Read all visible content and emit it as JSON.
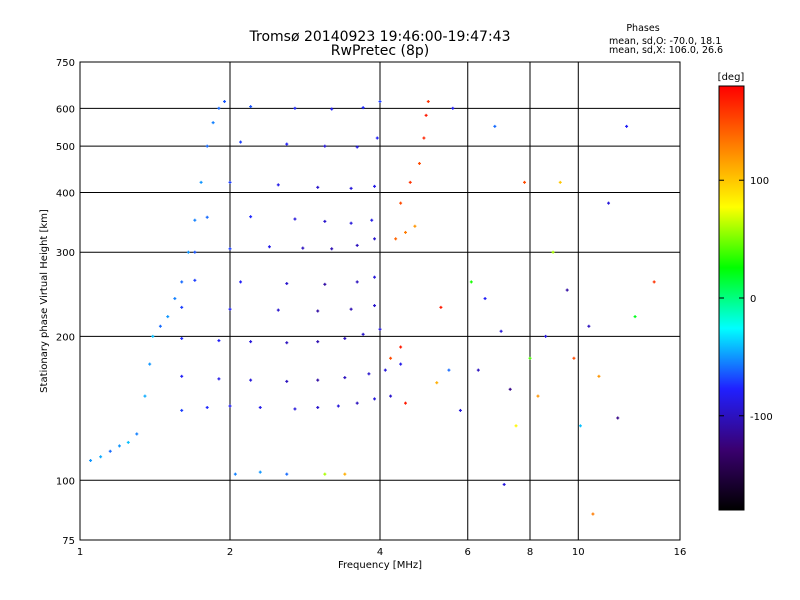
{
  "chart_data": {
    "type": "scatter",
    "title": "Tromsø 20140923 19:46:00-19:47:43",
    "subtitle": "RwPretec (8p)",
    "phases": {
      "heading": "Phases",
      "line_o": "mean, sd,O: -70.0, 18.1",
      "line_x": "mean, sd,X: 106.0, 26.6"
    },
    "xlabel": "Frequency [MHz]",
    "ylabel": "Stationary phase Virtual Height [km]",
    "x_scale": "log",
    "y_scale": "log",
    "xlim": [
      1,
      16
    ],
    "ylim": [
      75,
      750
    ],
    "x_ticks": [
      {
        "value": 1,
        "label": "1"
      },
      {
        "value": 2,
        "label": "2"
      },
      {
        "value": 4,
        "label": "4"
      },
      {
        "value": 6,
        "label": "6"
      },
      {
        "value": 8,
        "label": "8"
      },
      {
        "value": 10,
        "label": "10"
      },
      {
        "value": 16,
        "label": "16"
      }
    ],
    "y_ticks": [
      {
        "value": 75,
        "label": "75"
      },
      {
        "value": 100,
        "label": "100"
      },
      {
        "value": 200,
        "label": "200"
      },
      {
        "value": 300,
        "label": "300"
      },
      {
        "value": 400,
        "label": "400"
      },
      {
        "value": 500,
        "label": "500"
      },
      {
        "value": 600,
        "label": "600"
      },
      {
        "value": 750,
        "label": "750"
      }
    ],
    "x_gridlines": [
      2,
      4,
      6,
      8,
      10
    ],
    "y_gridlines": [
      100,
      200,
      300,
      400,
      500,
      600
    ],
    "grid": true,
    "colorbar": {
      "label": "[deg]",
      "range": [
        -180,
        180
      ],
      "ticks": [
        {
          "value": 100,
          "label": "100"
        },
        {
          "value": 0,
          "label": "0"
        },
        {
          "value": -100,
          "label": "-100"
        }
      ],
      "colors": [
        "#000000",
        "#3a0070",
        "#2020ff",
        "#00ffff",
        "#00ff00",
        "#ffff00",
        "#ff8000",
        "#ff0000"
      ]
    },
    "series": [
      {
        "values": [
          [
            1.05,
            110,
            -50
          ],
          [
            1.1,
            112,
            -45
          ],
          [
            1.15,
            115,
            -60
          ],
          [
            1.2,
            118,
            -50
          ],
          [
            1.25,
            120,
            -40
          ],
          [
            1.3,
            125,
            -55
          ],
          [
            1.35,
            150,
            -45
          ],
          [
            1.38,
            175,
            -50
          ],
          [
            1.4,
            200,
            -40
          ],
          [
            1.45,
            210,
            -60
          ],
          [
            1.5,
            220,
            -50
          ],
          [
            1.55,
            240,
            -55
          ],
          [
            1.6,
            260,
            -60
          ],
          [
            1.65,
            300,
            -50
          ],
          [
            1.7,
            350,
            -55
          ],
          [
            1.75,
            420,
            -50
          ],
          [
            1.8,
            500,
            -60
          ],
          [
            1.85,
            560,
            -55
          ],
          [
            1.9,
            600,
            -60
          ],
          [
            1.95,
            620,
            -65
          ],
          [
            1.6,
            140,
            -70
          ],
          [
            1.8,
            142,
            -75
          ],
          [
            2.0,
            143,
            -80
          ],
          [
            2.3,
            142,
            -85
          ],
          [
            2.7,
            141,
            -90
          ],
          [
            3.0,
            142,
            -95
          ],
          [
            3.3,
            143,
            -90
          ],
          [
            3.6,
            145,
            -100
          ],
          [
            3.9,
            148,
            -90
          ],
          [
            4.2,
            150,
            -95
          ],
          [
            1.6,
            165,
            -80
          ],
          [
            1.9,
            163,
            -85
          ],
          [
            2.2,
            162,
            -90
          ],
          [
            2.6,
            161,
            -100
          ],
          [
            3.0,
            162,
            -110
          ],
          [
            3.4,
            164,
            -100
          ],
          [
            3.8,
            167,
            -95
          ],
          [
            4.1,
            170,
            -90
          ],
          [
            4.4,
            175,
            -85
          ],
          [
            1.6,
            198,
            -75
          ],
          [
            1.9,
            196,
            -80
          ],
          [
            2.2,
            195,
            -90
          ],
          [
            2.6,
            194,
            -100
          ],
          [
            3.0,
            195,
            -105
          ],
          [
            3.4,
            198,
            -100
          ],
          [
            3.7,
            202,
            -95
          ],
          [
            4.0,
            207,
            -90
          ],
          [
            1.6,
            230,
            -70
          ],
          [
            2.0,
            228,
            -80
          ],
          [
            2.5,
            227,
            -95
          ],
          [
            3.0,
            226,
            -110
          ],
          [
            3.5,
            228,
            -105
          ],
          [
            3.9,
            232,
            -95
          ],
          [
            1.7,
            262,
            -70
          ],
          [
            2.1,
            260,
            -80
          ],
          [
            2.6,
            258,
            -95
          ],
          [
            3.1,
            257,
            -110
          ],
          [
            3.6,
            260,
            -100
          ],
          [
            3.9,
            266,
            -90
          ],
          [
            1.7,
            300,
            -65
          ],
          [
            2.0,
            305,
            -70
          ],
          [
            2.4,
            308,
            -85
          ],
          [
            2.8,
            306,
            -100
          ],
          [
            3.2,
            305,
            -105
          ],
          [
            3.6,
            310,
            -100
          ],
          [
            3.9,
            320,
            -95
          ],
          [
            1.8,
            355,
            -60
          ],
          [
            2.2,
            356,
            -75
          ],
          [
            2.7,
            352,
            -90
          ],
          [
            3.1,
            348,
            -95
          ],
          [
            3.5,
            345,
            -90
          ],
          [
            3.85,
            350,
            -85
          ],
          [
            2.0,
            420,
            -70
          ],
          [
            2.5,
            415,
            -85
          ],
          [
            3.0,
            410,
            -95
          ],
          [
            3.5,
            408,
            -90
          ],
          [
            3.9,
            412,
            -85
          ],
          [
            2.1,
            510,
            -70
          ],
          [
            2.6,
            505,
            -80
          ],
          [
            3.1,
            500,
            -90
          ],
          [
            3.6,
            498,
            -85
          ],
          [
            3.95,
            520,
            -80
          ],
          [
            2.2,
            605,
            -65
          ],
          [
            2.7,
            600,
            -75
          ],
          [
            3.2,
            598,
            -80
          ],
          [
            3.7,
            602,
            -75
          ],
          [
            4.0,
            620,
            -70
          ],
          [
            2.05,
            103,
            -55
          ],
          [
            2.3,
            104,
            -50
          ],
          [
            2.6,
            103,
            -60
          ],
          [
            3.1,
            103,
            60
          ],
          [
            3.4,
            103,
            110
          ],
          [
            4.3,
            320,
            140
          ],
          [
            4.5,
            330,
            130
          ],
          [
            4.7,
            340,
            120
          ],
          [
            4.4,
            380,
            150
          ],
          [
            4.6,
            420,
            160
          ],
          [
            4.8,
            460,
            150
          ],
          [
            4.9,
            520,
            165
          ],
          [
            4.95,
            580,
            170
          ],
          [
            5.0,
            620,
            160
          ],
          [
            4.2,
            180,
            150
          ],
          [
            4.4,
            190,
            170
          ],
          [
            4.5,
            145,
            170
          ]
        ]
      }
    ],
    "scatter_points": [
      [
        6.3,
        170,
        -100
      ],
      [
        6.5,
        240,
        -80
      ],
      [
        6.8,
        550,
        -60
      ],
      [
        7.0,
        205,
        -90
      ],
      [
        7.3,
        155,
        -120
      ],
      [
        7.5,
        130,
        80
      ],
      [
        7.8,
        420,
        150
      ],
      [
        8.0,
        180,
        40
      ],
      [
        8.3,
        150,
        120
      ],
      [
        8.6,
        200,
        -90
      ],
      [
        8.9,
        300,
        60
      ],
      [
        9.2,
        420,
        100
      ],
      [
        9.5,
        250,
        -110
      ],
      [
        9.8,
        180,
        150
      ],
      [
        10.1,
        130,
        -40
      ],
      [
        10.5,
        210,
        -100
      ],
      [
        11.0,
        165,
        120
      ],
      [
        11.5,
        380,
        -90
      ],
      [
        12.0,
        135,
        -120
      ],
      [
        12.5,
        550,
        -80
      ],
      [
        13.0,
        220,
        20
      ],
      [
        14.2,
        260,
        160
      ],
      [
        7.1,
        98,
        -90
      ],
      [
        10.7,
        85,
        130
      ],
      [
        5.3,
        230,
        170
      ],
      [
        5.5,
        170,
        -60
      ],
      [
        5.8,
        140,
        -90
      ],
      [
        6.1,
        260,
        30
      ],
      [
        5.2,
        160,
        110
      ],
      [
        5.6,
        600,
        -80
      ]
    ]
  }
}
